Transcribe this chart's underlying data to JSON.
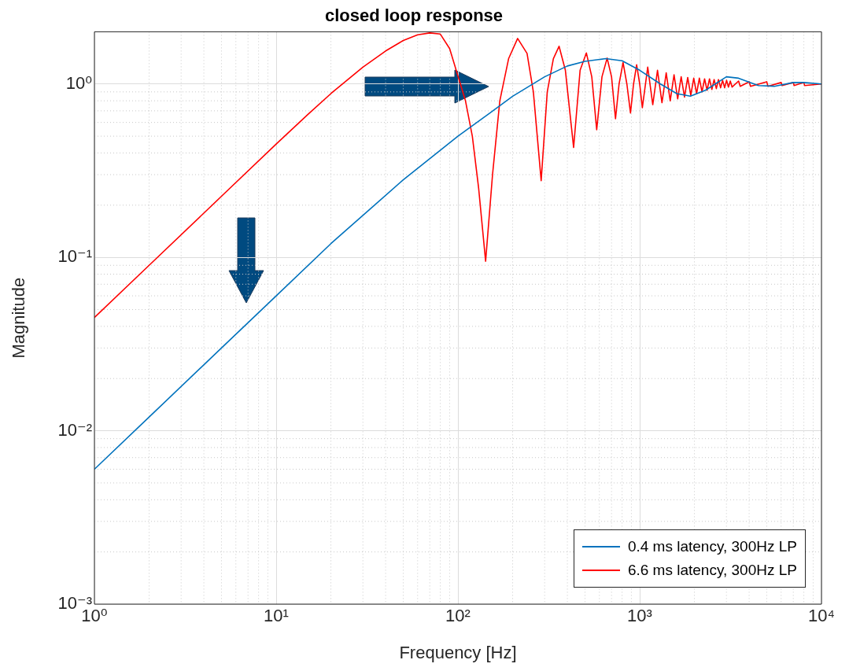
{
  "chart_data": {
    "type": "line",
    "title": "closed loop response",
    "xlabel": "Frequency [Hz]",
    "ylabel": "Magnitude",
    "log": "xy",
    "xlim": [
      1,
      10000
    ],
    "xticks": [
      {
        "value": 1,
        "label": "10⁰"
      },
      {
        "value": 10,
        "label": "10¹"
      },
      {
        "value": 100,
        "label": "10²"
      },
      {
        "value": 1000,
        "label": "10³"
      },
      {
        "value": 10000,
        "label": "10⁴"
      }
    ],
    "ylim": [
      0.001,
      2
    ],
    "yticks": [
      {
        "value": 0.001,
        "label": "10⁻³"
      },
      {
        "value": 0.01,
        "label": "10⁻²"
      },
      {
        "value": 0.1,
        "label": "10⁻¹"
      },
      {
        "value": 1,
        "label": "10⁰"
      }
    ],
    "grid": true,
    "legend": "bottom right",
    "series": [
      {
        "name": "0.4 ms latency, 300Hz LP",
        "color": "#0072bd",
        "x": [
          1,
          2,
          5,
          10,
          20,
          50,
          100,
          150,
          200,
          300,
          400,
          500,
          650,
          800,
          1000,
          1300,
          1600,
          1900,
          2300,
          3000,
          3500,
          4500,
          5500,
          7000,
          8000,
          10000
        ],
        "values": [
          0.006,
          0.012,
          0.03,
          0.06,
          0.12,
          0.28,
          0.5,
          0.68,
          0.85,
          1.1,
          1.27,
          1.35,
          1.4,
          1.36,
          1.2,
          1.0,
          0.88,
          0.85,
          0.92,
          1.1,
          1.08,
          0.98,
          0.97,
          1.02,
          1.02,
          1.0
        ]
      },
      {
        "name": "6.6 ms latency, 300Hz LP",
        "color": "#ff0000",
        "x": [
          1,
          2,
          5,
          10,
          15,
          20,
          30,
          40,
          50,
          60,
          70,
          80,
          90,
          110,
          120,
          130,
          142,
          155,
          170,
          190,
          213,
          240,
          260,
          287,
          310,
          335,
          360,
          390,
          433,
          470,
          509,
          545,
          580,
          620,
          662,
          700,
          736,
          770,
          810,
          850,
          890,
          925,
          962,
          1000,
          1034,
          1107,
          1180,
          1253,
          1326,
          1399,
          1472,
          1545,
          1618,
          1691,
          1764,
          1837,
          1910,
          1983,
          2056,
          2129,
          2202,
          2275,
          2348,
          2421,
          2494,
          2567,
          2640,
          2713,
          2786,
          2859,
          2932,
          3005,
          3078,
          3151,
          3224,
          3500,
          3573,
          4000,
          4073,
          5000,
          5073,
          6000,
          6073,
          7000,
          7073,
          8000,
          8073,
          10000
        ],
        "values": [
          0.045,
          0.09,
          0.225,
          0.45,
          0.67,
          0.88,
          1.25,
          1.55,
          1.78,
          1.92,
          1.97,
          1.94,
          1.6,
          0.8,
          0.5,
          0.25,
          0.095,
          0.3,
          0.8,
          1.4,
          1.83,
          1.5,
          0.9,
          0.277,
          0.9,
          1.4,
          1.65,
          1.2,
          0.43,
          1.2,
          1.51,
          1.1,
          0.545,
          1.1,
          1.41,
          1.1,
          0.63,
          1.0,
          1.33,
          1.0,
          0.68,
          1.0,
          1.29,
          1.0,
          0.73,
          1.25,
          0.76,
          1.2,
          0.78,
          1.16,
          0.8,
          1.13,
          0.82,
          1.1,
          0.84,
          1.09,
          0.86,
          1.08,
          0.88,
          1.08,
          0.9,
          1.07,
          0.92,
          1.07,
          0.93,
          1.06,
          0.94,
          1.06,
          0.95,
          1.05,
          0.95,
          1.05,
          0.96,
          1.04,
          0.96,
          1.04,
          0.97,
          1.03,
          0.97,
          1.03,
          0.97,
          1.02,
          0.98,
          1.02,
          0.98,
          1.02,
          0.98,
          1.0
        ]
      }
    ]
  }
}
